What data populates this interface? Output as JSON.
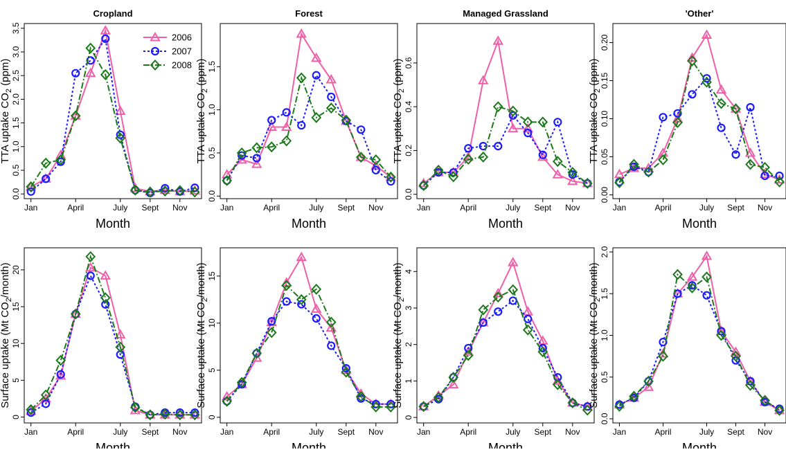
{
  "figure": {
    "row_labels": {
      "top": "TTA uptake CO2 (ppm)",
      "bottom": "Surface uptake (Mt CO2/month)"
    }
  },
  "legend": {
    "entries": [
      {
        "label": "2006",
        "color": "#ef5fa7",
        "marker": "triangle",
        "dash": "solid"
      },
      {
        "label": "2007",
        "color": "#1a1aff",
        "marker": "circle",
        "dash": "dotted"
      },
      {
        "label": "2008",
        "color": "#1a7a1a",
        "marker": "diamond",
        "dash": "dashdot"
      }
    ]
  },
  "chart_data": [
    {
      "type": "line",
      "title": "Cropland",
      "xlabel": "Month",
      "ylabel": "TTA uptake CO2 (ppm)",
      "ylabel_main": "TTA uptake CO",
      "ylabel_sub": "2",
      "ylabel_tail": " (ppm)",
      "x": [
        1,
        2,
        3,
        4,
        5,
        6,
        7,
        8,
        9,
        10,
        11,
        12
      ],
      "xticks": [
        {
          "v": 1,
          "label": "Jan"
        },
        {
          "v": 4,
          "label": "April"
        },
        {
          "v": 7,
          "label": "July"
        },
        {
          "v": 9,
          "label": "Sept"
        },
        {
          "v": 11,
          "label": "Nov"
        }
      ],
      "ylim": [
        -0.1,
        3.6
      ],
      "yticks": [
        "0.0",
        "0.5",
        "1.0",
        "1.5",
        "2.0",
        "2.5",
        "3.0",
        "3.5"
      ],
      "series": [
        {
          "name": "2006",
          "values": [
            0.15,
            0.32,
            0.82,
            1.65,
            2.55,
            3.45,
            1.75,
            0.12,
            0.05,
            0.08,
            0.05,
            0.07
          ]
        },
        {
          "name": "2007",
          "values": [
            0.05,
            0.32,
            0.68,
            2.55,
            2.82,
            3.28,
            1.25,
            0.08,
            0.02,
            0.12,
            0.05,
            0.13
          ]
        },
        {
          "name": "2008",
          "values": [
            0.15,
            0.65,
            0.72,
            1.65,
            3.08,
            2.52,
            1.18,
            0.08,
            0.04,
            0.06,
            0.07,
            0.04
          ]
        }
      ]
    },
    {
      "type": "line",
      "title": "Forest",
      "xlabel": "Month",
      "ylabel": "TTA uptake CO2 (ppm)",
      "ylabel_main": "TTA uptake CO",
      "ylabel_sub": "2",
      "ylabel_tail": " (ppm)",
      "x": [
        1,
        2,
        3,
        4,
        5,
        6,
        7,
        8,
        9,
        10,
        11,
        12
      ],
      "xticks": [
        {
          "v": 1,
          "label": "Jan"
        },
        {
          "v": 4,
          "label": "April"
        },
        {
          "v": 7,
          "label": "July"
        },
        {
          "v": 9,
          "label": "Sept"
        },
        {
          "v": 11,
          "label": "Nov"
        }
      ],
      "ylim": [
        -0.03,
        2.0
      ],
      "yticks": [
        "0.0",
        "0.5",
        "1.0",
        "1.5"
      ],
      "series": [
        {
          "name": "2006",
          "values": [
            0.25,
            0.42,
            0.37,
            0.8,
            0.8,
            1.88,
            1.6,
            1.35,
            0.87,
            0.45,
            0.35,
            0.22
          ]
        },
        {
          "name": "2007",
          "values": [
            0.18,
            0.47,
            0.44,
            0.88,
            0.97,
            0.82,
            1.4,
            1.15,
            0.87,
            0.77,
            0.3,
            0.17
          ]
        },
        {
          "name": "2008",
          "values": [
            0.18,
            0.5,
            0.56,
            0.57,
            0.64,
            1.37,
            0.91,
            1.02,
            0.88,
            0.45,
            0.42,
            0.22
          ]
        }
      ]
    },
    {
      "type": "line",
      "title": "Managed Grassland",
      "xlabel": "Month",
      "ylabel": "TTA uptake CO2 (ppm)",
      "ylabel_main": "TTA uptake CO",
      "ylabel_sub": "2",
      "ylabel_tail": " (ppm)",
      "x": [
        1,
        2,
        3,
        4,
        5,
        6,
        7,
        8,
        9,
        10,
        11,
        12
      ],
      "xticks": [
        {
          "v": 1,
          "label": "Jan"
        },
        {
          "v": 4,
          "label": "April"
        },
        {
          "v": 7,
          "label": "July"
        },
        {
          "v": 9,
          "label": "Sept"
        },
        {
          "v": 11,
          "label": "Nov"
        }
      ],
      "ylim": [
        -0.02,
        0.78
      ],
      "yticks": [
        "0.0",
        "0.2",
        "0.4",
        "0.6"
      ],
      "series": [
        {
          "name": "2006",
          "values": [
            0.05,
            0.1,
            0.1,
            0.17,
            0.52,
            0.7,
            0.3,
            0.3,
            0.17,
            0.09,
            0.06,
            0.05
          ]
        },
        {
          "name": "2007",
          "values": [
            0.04,
            0.1,
            0.1,
            0.21,
            0.22,
            0.22,
            0.36,
            0.28,
            0.18,
            0.33,
            0.09,
            0.05
          ]
        },
        {
          "name": "2008",
          "values": [
            0.04,
            0.11,
            0.08,
            0.16,
            0.17,
            0.4,
            0.38,
            0.33,
            0.33,
            0.15,
            0.1,
            0.05
          ]
        }
      ]
    },
    {
      "type": "line",
      "title": "'Other'",
      "xlabel": "Month",
      "ylabel": "TTA uptake CO2 (ppm)",
      "ylabel_main": "TTA uptake CO",
      "ylabel_sub": "2",
      "ylabel_tail": " (ppm)",
      "x": [
        1,
        2,
        3,
        4,
        5,
        6,
        7,
        8,
        9,
        10,
        11,
        12
      ],
      "xticks": [
        {
          "v": 1,
          "label": "Jan"
        },
        {
          "v": 4,
          "label": "April"
        },
        {
          "v": 7,
          "label": "July"
        },
        {
          "v": 9,
          "label": "Sept"
        },
        {
          "v": 11,
          "label": "Nov"
        }
      ],
      "ylim": [
        -0.005,
        0.225
      ],
      "yticks": [
        "0.00",
        "0.05",
        "0.10",
        "0.15",
        "0.20"
      ],
      "series": [
        {
          "name": "2006",
          "values": [
            0.027,
            0.035,
            0.035,
            0.055,
            0.1,
            0.18,
            0.21,
            0.138,
            0.113,
            0.055,
            0.027,
            0.02
          ]
        },
        {
          "name": "2007",
          "values": [
            0.017,
            0.037,
            0.03,
            0.102,
            0.107,
            0.132,
            0.153,
            0.088,
            0.053,
            0.115,
            0.025,
            0.025
          ]
        },
        {
          "name": "2008",
          "values": [
            0.016,
            0.04,
            0.03,
            0.046,
            0.095,
            0.176,
            0.148,
            0.12,
            0.113,
            0.04,
            0.036,
            0.017
          ]
        }
      ]
    },
    {
      "type": "line",
      "title": "",
      "xlabel": "Month",
      "ylabel": "Surface uptake (Mt CO2/month)",
      "ylabel_main": "Surface uptake (Mt CO",
      "ylabel_sub": "2",
      "ylabel_tail": "/month)",
      "x": [
        1,
        2,
        3,
        4,
        5,
        6,
        7,
        8,
        9,
        10,
        11,
        12
      ],
      "xticks": [
        {
          "v": 1,
          "label": "Jan"
        },
        {
          "v": 4,
          "label": "April"
        },
        {
          "v": 7,
          "label": "July"
        },
        {
          "v": 9,
          "label": "Sept"
        },
        {
          "v": 11,
          "label": "Nov"
        }
      ],
      "ylim": [
        -0.8,
        23.0
      ],
      "yticks": [
        "0",
        "5",
        "10",
        "15",
        "20"
      ],
      "series": [
        {
          "name": "2006",
          "values": [
            0.8,
            2.5,
            5.6,
            14.0,
            20.3,
            19.2,
            11.2,
            0.9,
            0.3,
            0.3,
            0.3,
            0.3
          ]
        },
        {
          "name": "2007",
          "values": [
            0.6,
            1.8,
            5.8,
            14.0,
            19.2,
            15.3,
            8.5,
            1.4,
            0.3,
            0.6,
            0.6,
            0.6
          ]
        },
        {
          "name": "2008",
          "values": [
            1.0,
            3.0,
            7.7,
            14.0,
            21.8,
            16.2,
            9.5,
            1.3,
            0.3,
            0.4,
            0.3,
            0.3
          ]
        }
      ]
    },
    {
      "type": "line",
      "title": "",
      "xlabel": "Month",
      "ylabel": "Surface uptake (Mt CO2/month)",
      "ylabel_main": "Surface uptake (Mt CO",
      "ylabel_sub": "2",
      "ylabel_tail": "/month)",
      "x": [
        1,
        2,
        3,
        4,
        5,
        6,
        7,
        8,
        9,
        10,
        11,
        12
      ],
      "xticks": [
        {
          "v": 1,
          "label": "Jan"
        },
        {
          "v": 4,
          "label": "April"
        },
        {
          "v": 7,
          "label": "July"
        },
        {
          "v": 9,
          "label": "Sept"
        },
        {
          "v": 11,
          "label": "Nov"
        }
      ],
      "ylim": [
        -0.6,
        18.0
      ],
      "yticks": [
        "0",
        "5",
        "10",
        "15"
      ],
      "series": [
        {
          "name": "2006",
          "values": [
            2.2,
            3.5,
            6.3,
            10.1,
            14.3,
            17.0,
            11.5,
            9.5,
            5.0,
            2.5,
            1.4,
            1.4
          ]
        },
        {
          "name": "2007",
          "values": [
            1.7,
            3.5,
            6.8,
            10.2,
            12.3,
            12.0,
            10.5,
            7.6,
            5.2,
            2.0,
            1.4,
            1.4
          ]
        },
        {
          "name": "2008",
          "values": [
            1.7,
            3.7,
            6.8,
            9.0,
            14.0,
            12.5,
            13.6,
            10.1,
            4.8,
            2.2,
            1.1,
            1.1
          ]
        }
      ]
    },
    {
      "type": "line",
      "title": "",
      "xlabel": "Month",
      "ylabel": "Surface uptake (Mt CO2/month)",
      "ylabel_main": "Surface uptake (Mt CO",
      "ylabel_sub": "2",
      "ylabel_tail": "/month)",
      "x": [
        1,
        2,
        3,
        4,
        5,
        6,
        7,
        8,
        9,
        10,
        11,
        12
      ],
      "xticks": [
        {
          "v": 1,
          "label": "Jan"
        },
        {
          "v": 4,
          "label": "April"
        },
        {
          "v": 7,
          "label": "July"
        },
        {
          "v": 9,
          "label": "Sept"
        },
        {
          "v": 11,
          "label": "Nov"
        }
      ],
      "ylim": [
        -0.15,
        4.65
      ],
      "yticks": [
        "0",
        "1",
        "2",
        "3",
        "4"
      ],
      "series": [
        {
          "name": "2006",
          "values": [
            0.3,
            0.6,
            0.9,
            1.8,
            2.6,
            3.4,
            4.25,
            2.9,
            2.1,
            1.0,
            0.4,
            0.3
          ]
        },
        {
          "name": "2007",
          "values": [
            0.3,
            0.5,
            1.1,
            1.9,
            2.6,
            2.9,
            3.2,
            2.7,
            1.9,
            1.1,
            0.4,
            0.3
          ]
        },
        {
          "name": "2008",
          "values": [
            0.3,
            0.55,
            1.1,
            1.7,
            2.95,
            3.3,
            3.5,
            2.4,
            1.8,
            0.9,
            0.4,
            0.2
          ]
        }
      ]
    },
    {
      "type": "line",
      "title": "",
      "xlabel": "Month",
      "ylabel": "Surface uptake (Mt CO2/month)",
      "ylabel_main": "Surface uptake (Mt CO",
      "ylabel_sub": "2",
      "ylabel_tail": "/month)",
      "x": [
        1,
        2,
        3,
        4,
        5,
        6,
        7,
        8,
        9,
        10,
        11,
        12
      ],
      "xticks": [
        {
          "v": 1,
          "label": "Jan"
        },
        {
          "v": 4,
          "label": "April"
        },
        {
          "v": 7,
          "label": "July"
        },
        {
          "v": 9,
          "label": "Sept"
        },
        {
          "v": 11,
          "label": "Nov"
        }
      ],
      "ylim": [
        -0.05,
        2.05
      ],
      "yticks": [
        "0.0",
        "0.5",
        "1.0",
        "1.5",
        "2.0"
      ],
      "series": [
        {
          "name": "2006",
          "values": [
            0.17,
            0.25,
            0.38,
            0.78,
            1.5,
            1.7,
            1.95,
            1.05,
            0.8,
            0.45,
            0.2,
            0.1
          ]
        },
        {
          "name": "2007",
          "values": [
            0.17,
            0.25,
            0.45,
            0.92,
            1.5,
            1.6,
            1.48,
            1.05,
            0.7,
            0.45,
            0.2,
            0.12
          ]
        },
        {
          "name": "2008",
          "values": [
            0.15,
            0.27,
            0.45,
            0.75,
            1.73,
            1.57,
            1.7,
            1.0,
            0.75,
            0.4,
            0.22,
            0.1
          ]
        }
      ]
    }
  ]
}
